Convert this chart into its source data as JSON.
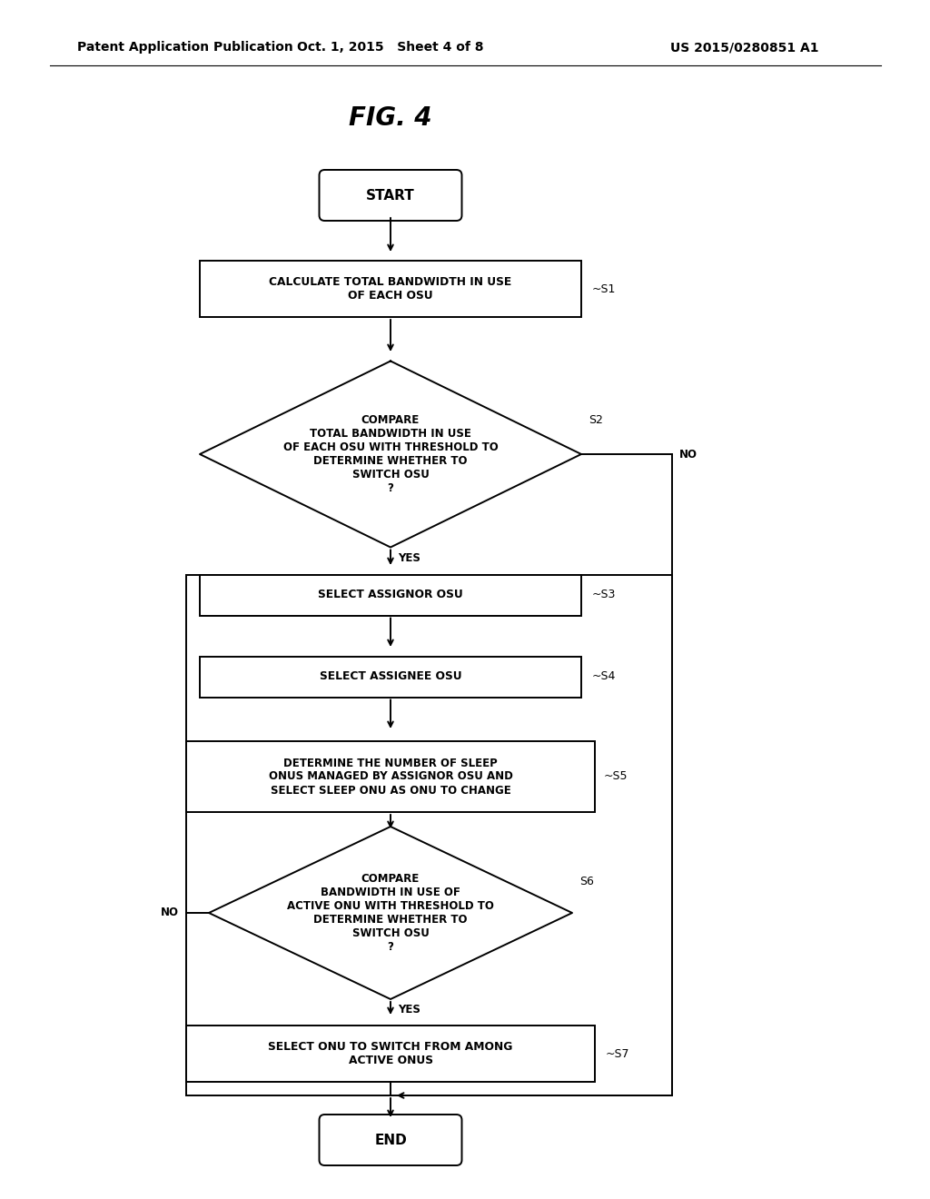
{
  "bg_color": "#ffffff",
  "title": "FIG. 4",
  "header_left": "Patent Application Publication",
  "header_mid": "Oct. 1, 2015   Sheet 4 of 8",
  "header_right": "US 2015/0280851 A1",
  "font_size_title": 20,
  "font_size_header": 10,
  "font_size_node": 8.5,
  "font_size_tag": 9,
  "font_size_label": 7.5
}
